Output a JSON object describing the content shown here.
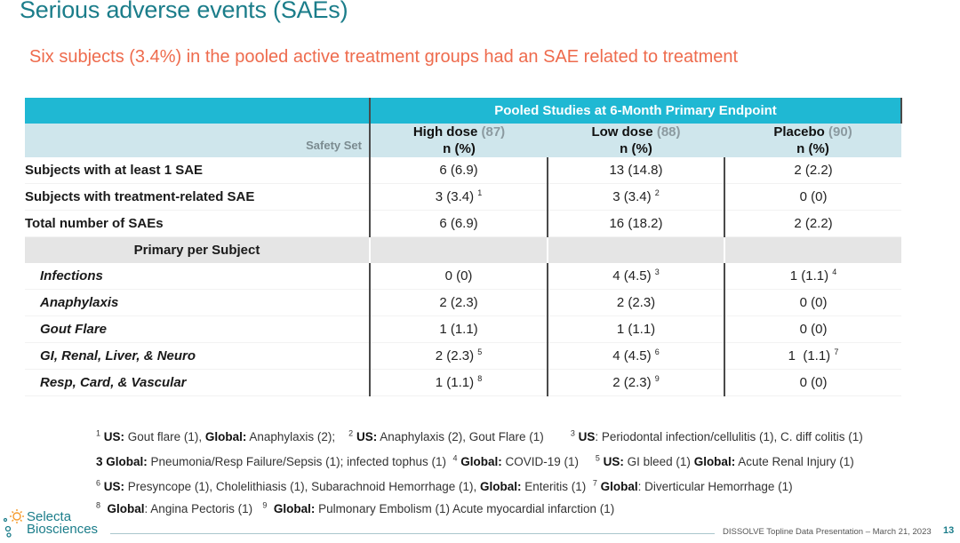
{
  "title": "Serious adverse events (SAEs)",
  "subtitle": "Six subjects (3.4%) in the pooled active treatment groups had an SAE related to treatment",
  "table": {
    "header_span": "Pooled Studies at 6-Month Primary Endpoint",
    "safety_set_label": "Safety Set",
    "columns": [
      {
        "name": "High dose",
        "count": "(87)",
        "unit": "n (%)"
      },
      {
        "name": "Low dose",
        "count": "(88)",
        "unit": "n (%)"
      },
      {
        "name": "Placebo",
        "count": "(90)",
        "unit": "n (%)"
      }
    ],
    "rows_top": [
      {
        "label": "Subjects with at least 1 SAE",
        "cells": [
          {
            "v": "6 (6.9)",
            "s": ""
          },
          {
            "v": "13 (14.8)",
            "s": ""
          },
          {
            "v": "2 (2.2)",
            "s": ""
          }
        ]
      },
      {
        "label": "Subjects with treatment-related SAE",
        "cells": [
          {
            "v": "3 (3.4)",
            "s": "1"
          },
          {
            "v": "3 (3.4)",
            "s": "2"
          },
          {
            "v": "0 (0)",
            "s": ""
          }
        ]
      },
      {
        "label": "Total number of SAEs",
        "cells": [
          {
            "v": "6 (6.9)",
            "s": ""
          },
          {
            "v": "16 (18.2)",
            "s": ""
          },
          {
            "v": "2 (2.2)",
            "s": ""
          }
        ]
      }
    ],
    "section_label": "Primary per Subject",
    "rows_sub": [
      {
        "label": "Infections",
        "cells": [
          {
            "v": "0 (0)",
            "s": ""
          },
          {
            "v": "4 (4.5)",
            "s": "3"
          },
          {
            "v": "1 (1.1)",
            "s": "4"
          }
        ]
      },
      {
        "label": "Anaphylaxis",
        "cells": [
          {
            "v": "2 (2.3)",
            "s": ""
          },
          {
            "v": "2 (2.3)",
            "s": ""
          },
          {
            "v": "0 (0)",
            "s": ""
          }
        ]
      },
      {
        "label": "Gout Flare",
        "cells": [
          {
            "v": "1 (1.1)",
            "s": ""
          },
          {
            "v": "1 (1.1)",
            "s": ""
          },
          {
            "v": "0 (0)",
            "s": ""
          }
        ]
      },
      {
        "label": "GI, Renal, Liver, & Neuro",
        "cells": [
          {
            "v": "2 (2.3)",
            "s": "5"
          },
          {
            "v": "4 (4.5)",
            "s": "6"
          },
          {
            "v": "1  (1.1)",
            "s": "7"
          }
        ]
      },
      {
        "label": "Resp, Card, & Vascular",
        "cells": [
          {
            "v": "1 (1.1)",
            "s": "8"
          },
          {
            "v": "2 (2.3)",
            "s": "9"
          },
          {
            "v": "0 (0)",
            "s": ""
          }
        ]
      }
    ]
  },
  "footnotes": [
    {
      "n": "1",
      "us_label": "US:",
      "us_text": "Gout flare (1),",
      "g_label": "Global:",
      "g_text": "Anaphylaxis (2);"
    },
    {
      "n": "2",
      "us_label": "US:",
      "us_text": "Anaphylaxis (2), Gout Flare (1)"
    },
    {
      "n": "3",
      "us_label": "US",
      "us_text": ": Periodontal infection/cellulitis (1), C. diff colitis (1)"
    },
    {
      "n": "3",
      "g_label": "Global:",
      "g_text": "Pneumonia/Resp Failure/Sepsis (1); infected tophus (1)"
    },
    {
      "n": "4",
      "g_label": "Global:",
      "g_text": "COVID-19 (1)"
    },
    {
      "n": "5",
      "us_label": "US:",
      "us_text": "GI bleed (1)",
      "g_label": "Global:",
      "g_text": "Acute Renal Injury (1)"
    },
    {
      "n": "6",
      "us_label": "US:",
      "us_text": "Presyncope (1), Cholelithiasis (1), Subarachnoid Hemorrhage (1),",
      "g_label": "Global:",
      "g_text": "Enteritis (1)"
    },
    {
      "n": "7",
      "g_label": "Global",
      "g_text": ": Diverticular Hemorrhage (1)"
    },
    {
      "n": "8",
      "g_label": "Global",
      "g_text": ": Angina Pectoris (1)"
    },
    {
      "n": "9",
      "g_label": "Global:",
      "g_text": "Pulmonary Embolism (1) Acute myocardial infarction (1)"
    }
  ],
  "logo": {
    "line1": "Selecta",
    "line2": "Biosciences"
  },
  "footer": {
    "text": "DISSOLVE Topline Data Presentation – March 21, 2023",
    "page": "13"
  },
  "colors": {
    "teal": "#1fb8d3",
    "title": "#1b7d8a",
    "coral": "#ee6b4d",
    "light_blue": "#cfe6ec",
    "grey": "#e5e5e5"
  }
}
